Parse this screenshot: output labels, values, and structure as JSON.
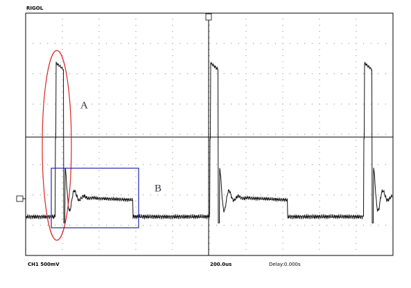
{
  "header": {
    "brand": "RIGOL"
  },
  "annotations": {
    "ellipse_label": "A",
    "box_label": "B"
  },
  "footer": {
    "channel": "CH1 500mV",
    "timebase": "200.0us",
    "delay": "Delay:0.000s"
  }
}
